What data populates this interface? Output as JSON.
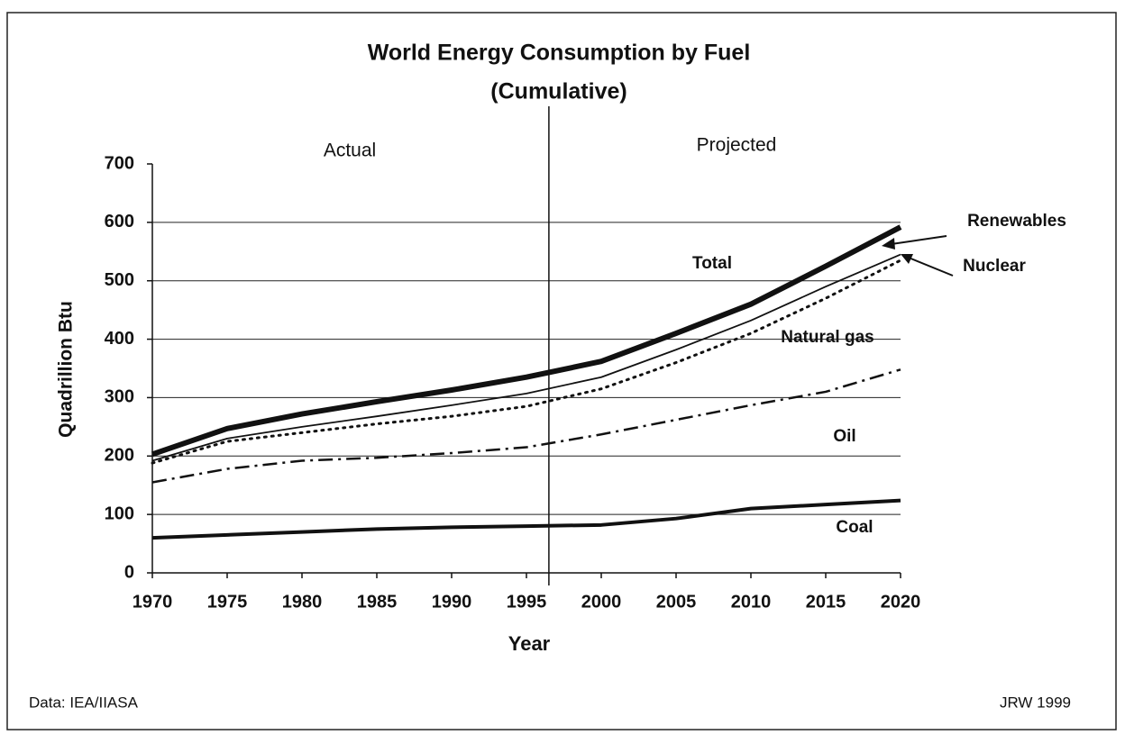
{
  "chart_data": {
    "type": "line",
    "title": "World Energy Consumption by Fuel",
    "subtitle": "(Cumulative)",
    "x_label": "Year",
    "y_label": "Quadrillion Btu",
    "period_labels": [
      "Actual",
      "Projected"
    ],
    "divider": 1996.5,
    "renewables_label": "Renewables",
    "source": "Data: IEA/IIASA",
    "credit": "JRW 1999",
    "x": [
      1970,
      1975,
      1980,
      1985,
      1990,
      1995,
      2000,
      2005,
      2010,
      2015,
      2020
    ],
    "series": [
      {
        "name": "Coal",
        "color": "#111111",
        "style": "solid",
        "width": 4,
        "values": [
          60,
          65,
          70,
          75,
          78,
          80,
          82,
          93,
          110,
          117,
          124
        ]
      },
      {
        "name": "Oil",
        "color": "#111111",
        "style": "dashdot",
        "width": 2.5,
        "values": [
          155,
          178,
          192,
          197,
          205,
          215,
          237,
          262,
          287,
          310,
          348
        ]
      },
      {
        "name": "Natural gas",
        "color": "#111111",
        "style": "dotted",
        "width": 3,
        "values": [
          188,
          225,
          240,
          255,
          268,
          285,
          315,
          360,
          410,
          470,
          535
        ]
      },
      {
        "name": "Nuclear",
        "color": "#111111",
        "style": "solid",
        "width": 1.8,
        "values": [
          192,
          230,
          250,
          268,
          287,
          307,
          335,
          382,
          432,
          490,
          545
        ]
      },
      {
        "name": "Total",
        "color": "#111111",
        "style": "solid",
        "width": 6,
        "values": [
          203,
          247,
          272,
          293,
          313,
          335,
          362,
          410,
          460,
          525,
          592
        ]
      }
    ],
    "xlim": [
      1970,
      2020
    ],
    "xticks": [
      1970,
      1975,
      1980,
      1985,
      1990,
      1995,
      2000,
      2005,
      2010,
      2015,
      2020
    ],
    "ylim": [
      0,
      700
    ],
    "yticks": [
      0,
      100,
      200,
      300,
      400,
      500,
      600,
      700
    ],
    "grid": true
  }
}
